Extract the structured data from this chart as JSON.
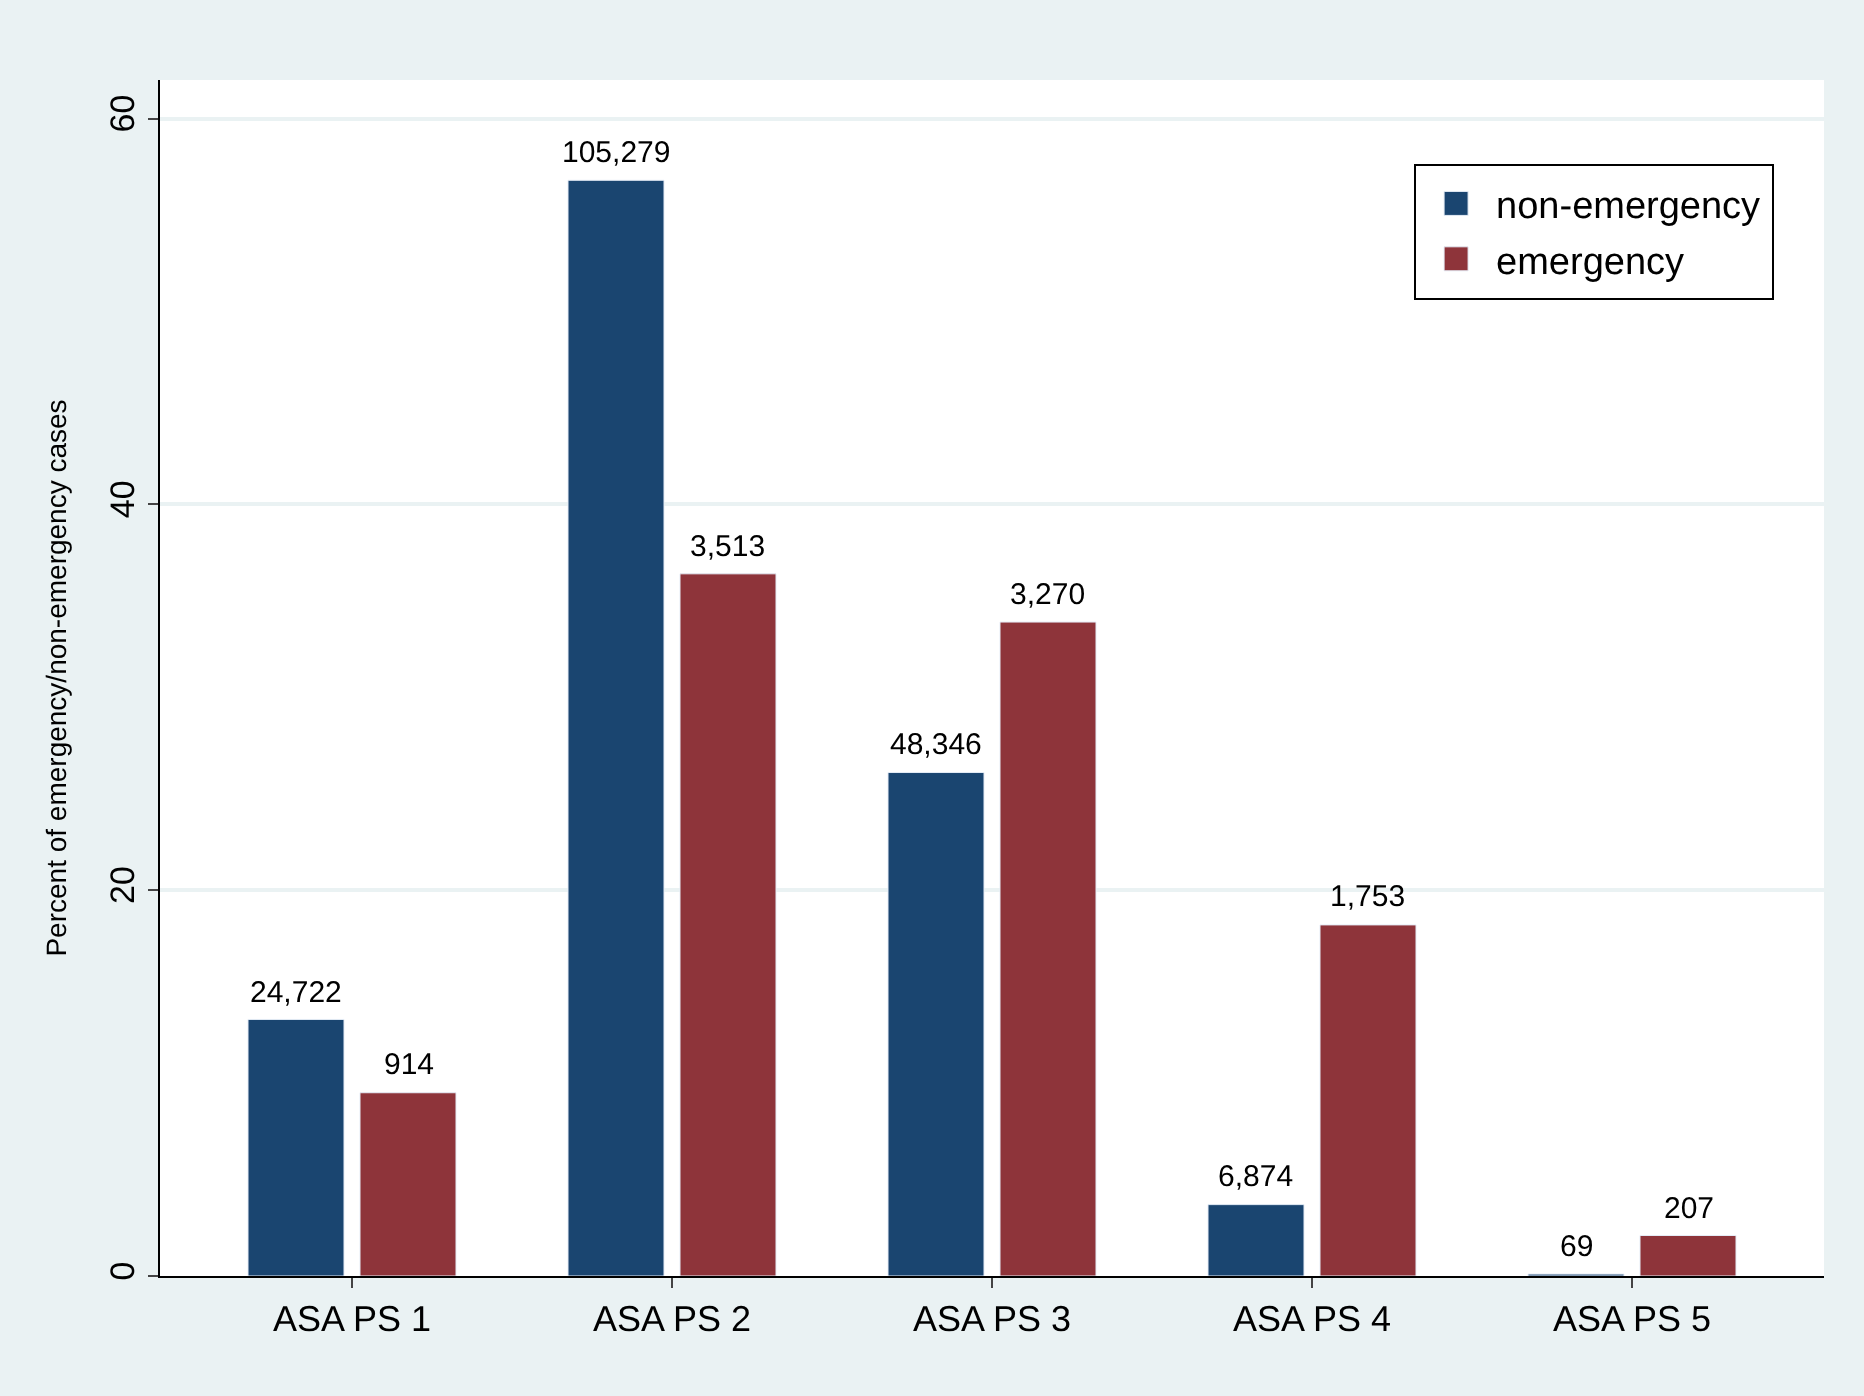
{
  "chart_data": {
    "type": "bar",
    "ylabel": "Percent of emergency/non-emergency cases",
    "categories": [
      "ASA PS 1",
      "ASA PS 2",
      "ASA PS 3",
      "ASA PS 4",
      "ASA PS 5"
    ],
    "series": [
      {
        "name": "non-emergency",
        "color": "#1a4570",
        "values": [
          13.3,
          56.8,
          26.1,
          3.7,
          0.1
        ]
      },
      {
        "name": "emergency",
        "color": "#8e343a",
        "values": [
          9.5,
          36.4,
          33.9,
          18.2,
          2.1
        ]
      }
    ],
    "annotations": [
      {
        "text": "24,722",
        "x": "ASA PS 1",
        "y": 13.3
      },
      {
        "text": "105,279",
        "x": "ASA PS 2",
        "y": 56.8
      },
      {
        "text": "48,346",
        "x": "ASA PS 3",
        "y": 26.1
      },
      {
        "text": "6,874",
        "x": "ASA PS 4",
        "y": 3.7
      },
      {
        "text": "69",
        "x": "ASA PS 5",
        "y": 0.1
      },
      {
        "text": "914",
        "x": "ASA PS 1",
        "y": 9.5
      },
      {
        "text": "3,513",
        "x": "ASA PS 2",
        "y": 36.4
      },
      {
        "text": "3,270",
        "x": "ASA PS 3",
        "y": 33.9
      },
      {
        "text": "1,753",
        "x": "ASA PS 4",
        "y": 18.2
      },
      {
        "text": "207",
        "x": "ASA PS 5",
        "y": 2.1
      }
    ],
    "ylim": [
      0,
      62
    ],
    "yticks": [
      0,
      20,
      40,
      60
    ],
    "grid": "y",
    "legend": "top right"
  }
}
